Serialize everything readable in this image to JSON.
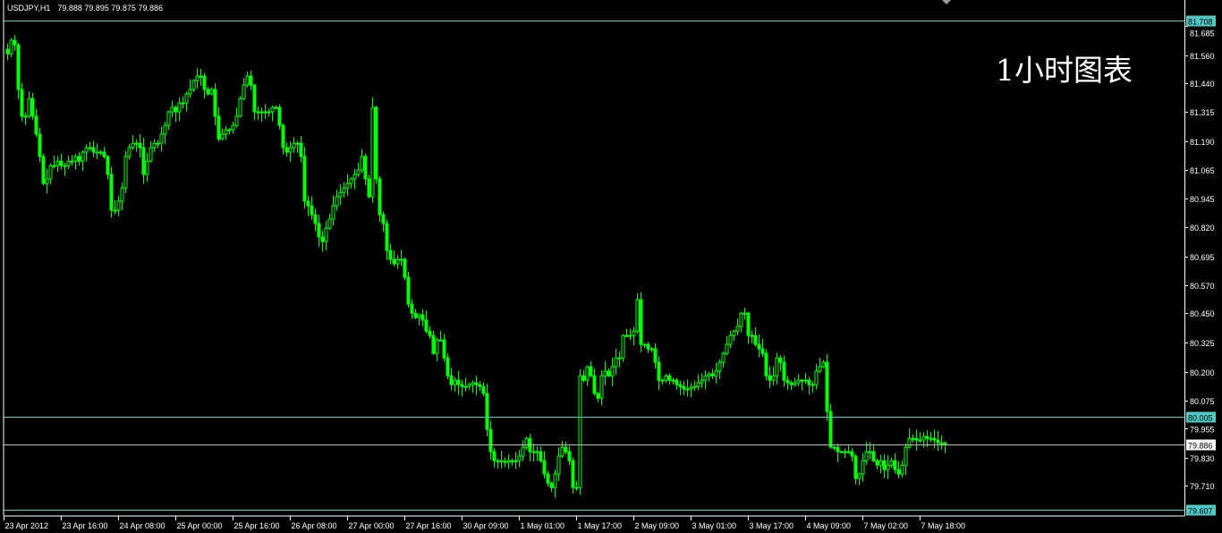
{
  "header": {
    "symbol_timeframe": "USDJPY,H1",
    "ohlc_readout": "79.888 79.895 79.875 79.886"
  },
  "overlay_text": "1小时图表",
  "colors": {
    "background": "#000000",
    "candle": "#00ff00",
    "level_line": "#4fc9c4",
    "bid_line": "#c0c0c0",
    "axis": "#ffffff"
  },
  "chart_data": {
    "type": "candlestick",
    "symbol": "USDJPY",
    "timeframe": "H1",
    "y_tick_labels": [
      "81.685",
      "81.560",
      "81.440",
      "81.315",
      "81.190",
      "81.065",
      "80.945",
      "80.820",
      "80.695",
      "80.570",
      "80.450",
      "80.325",
      "80.200",
      "80.075",
      "79.955",
      "79.830",
      "79.710"
    ],
    "x_tick_labels": [
      "23 Apr 2012",
      "23 Apr 16:00",
      "24 Apr 08:00",
      "25 Apr 00:00",
      "25 Apr 16:00",
      "26 Apr 08:00",
      "27 Apr 00:00",
      "27 Apr 16:00",
      "30 Apr 09:00",
      "1 May 01:00",
      "1 May 17:00",
      "2 May 09:00",
      "3 May 01:00",
      "3 May 17:00",
      "4 May 09:00",
      "7 May 02:00",
      "7 May 18:00"
    ],
    "price_levels": [
      {
        "value": "81.708",
        "kind": "level"
      },
      {
        "value": "80.005",
        "kind": "level"
      },
      {
        "value": "79.886",
        "kind": "bid"
      },
      {
        "value": "79.607",
        "kind": "level"
      }
    ],
    "ylim": [
      79.585,
      81.72
    ],
    "grid": false,
    "closes": [
      81.565,
      81.623,
      81.604,
      81.412,
      81.297,
      81.297,
      81.373,
      81.297,
      81.22,
      81.124,
      81.008,
      81.028,
      81.085,
      81.085,
      81.104,
      81.085,
      81.085,
      81.104,
      81.104,
      81.124,
      81.104,
      81.143,
      81.162,
      81.162,
      81.143,
      81.143,
      81.143,
      81.124,
      81.047,
      80.893,
      80.893,
      80.932,
      80.989,
      81.124,
      81.162,
      81.181,
      81.181,
      81.162,
      81.047,
      81.104,
      81.162,
      81.181,
      81.181,
      81.22,
      81.258,
      81.316,
      81.335,
      81.316,
      81.354,
      81.354,
      81.393,
      81.412,
      81.45,
      81.469,
      81.469,
      81.412,
      81.393,
      81.412,
      81.297,
      81.2,
      81.22,
      81.239,
      81.239,
      81.258,
      81.297,
      81.373,
      81.431,
      81.469,
      81.431,
      81.316,
      81.316,
      81.316,
      81.316,
      81.316,
      81.335,
      81.335,
      81.258,
      81.162,
      81.143,
      81.162,
      81.181,
      81.181,
      81.124,
      80.932,
      80.912,
      80.874,
      80.836,
      80.778,
      80.759,
      80.816,
      80.855,
      80.912,
      80.951,
      80.97,
      80.989,
      81.008,
      81.028,
      81.047,
      81.066,
      81.124,
      81.028,
      80.951,
      81.335,
      81.028,
      80.874,
      80.836,
      80.72,
      80.682,
      80.663,
      80.682,
      80.682,
      80.605,
      80.49,
      80.451,
      80.432,
      80.444,
      80.421,
      80.374,
      80.355,
      80.278,
      80.336,
      80.336,
      80.259,
      80.182,
      80.144,
      80.163,
      80.144,
      80.136,
      80.136,
      80.144,
      80.152,
      80.144,
      80.136,
      80.106,
      79.952,
      79.856,
      79.817,
      79.817,
      79.814,
      79.81,
      79.817,
      79.817,
      79.817,
      79.837,
      79.875,
      79.913,
      79.856,
      79.856,
      79.856,
      79.817,
      79.76,
      79.721,
      79.702,
      79.76,
      79.837,
      79.875,
      79.856,
      79.817,
      79.702,
      79.702,
      80.182,
      80.163,
      80.221,
      80.182,
      80.106,
      80.086,
      80.182,
      80.202,
      80.182,
      80.221,
      80.259,
      80.259,
      80.355,
      80.355,
      80.355,
      80.374,
      80.509,
      80.317,
      80.317,
      80.298,
      80.298,
      80.24,
      80.163,
      80.163,
      80.182,
      80.163,
      80.163,
      80.144,
      80.136,
      80.125,
      80.125,
      80.132,
      80.136,
      80.152,
      80.163,
      80.182,
      80.19,
      80.182,
      80.202,
      80.24,
      80.278,
      80.317,
      80.355,
      80.374,
      80.394,
      80.451,
      80.451,
      80.355,
      80.355,
      80.317,
      80.298,
      80.278,
      80.182,
      80.163,
      80.182,
      80.259,
      80.24,
      80.163,
      80.152,
      80.144,
      80.152,
      80.163,
      80.163,
      80.163,
      80.144,
      80.144,
      80.202,
      80.221,
      80.24,
      80.029,
      79.875,
      79.875,
      79.856,
      79.856,
      79.856,
      79.856,
      79.837,
      79.741,
      79.76,
      79.817,
      79.856,
      79.856,
      79.817,
      79.798,
      79.817,
      79.779,
      79.798,
      79.817,
      79.779,
      79.76,
      79.798,
      79.875,
      79.913,
      79.913,
      79.906,
      79.906,
      79.921,
      79.913,
      79.913,
      79.906,
      79.894,
      79.894,
      79.886
    ]
  }
}
